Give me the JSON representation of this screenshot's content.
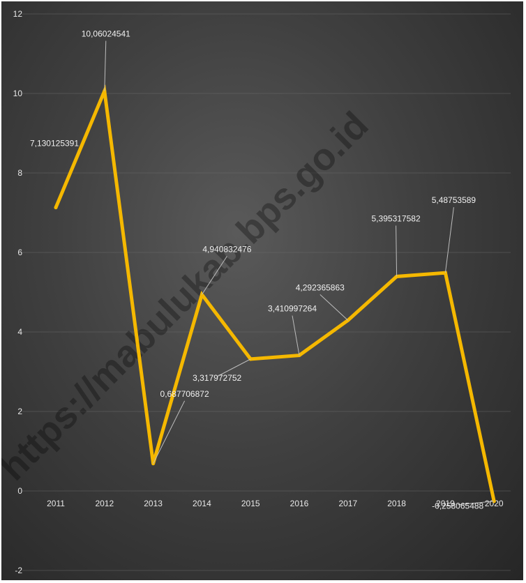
{
  "chart_data": {
    "type": "line",
    "categories": [
      "2011",
      "2012",
      "2013",
      "2014",
      "2015",
      "2016",
      "2017",
      "2018",
      "2019",
      "2020"
    ],
    "series": [
      {
        "values": [
          7.130125391,
          10.06024541,
          0.687706872,
          4.940832476,
          3.317972752,
          3.410997264,
          4.292365863,
          5.395317582,
          5.48753589,
          -0.258065488
        ]
      }
    ],
    "data_labels": [
      "7,130125391",
      "10,06024541",
      "0,687706872",
      "4,940832476",
      "3,317972752",
      "3,410997264",
      "4,292365863",
      "5,395317582",
      "5,48753589",
      "-0,258065488"
    ],
    "y_ticks": [
      "-2",
      "0",
      "2",
      "4",
      "6",
      "8",
      "10",
      "12"
    ],
    "ylim": [
      -2,
      12
    ],
    "grid": true,
    "line_color": "#f5b800",
    "background": "#3f3f3f"
  },
  "watermark": "https://mabulukab.bps.go.id"
}
